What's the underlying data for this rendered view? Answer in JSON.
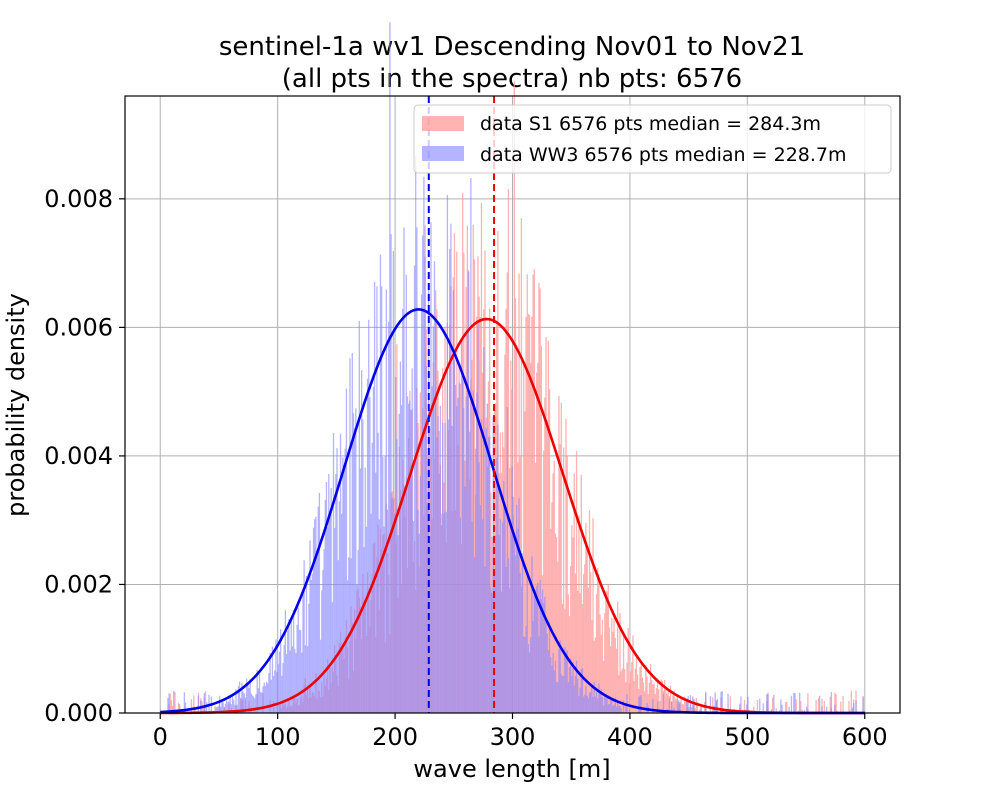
{
  "chart_data": {
    "type": "histogram",
    "title_line1": "sentinel-1a wv1 Descending Nov01 to Nov21",
    "title_line2": "(all pts in the spectra) nb pts: 6576",
    "xlabel": "wave length [m]",
    "ylabel": "probability density",
    "xlim": [
      -30,
      630
    ],
    "ylim": [
      0,
      0.0096
    ],
    "xticks": [
      0,
      100,
      200,
      300,
      400,
      500,
      600
    ],
    "xtick_labels": [
      "0",
      "100",
      "200",
      "300",
      "400",
      "500",
      "600"
    ],
    "yticks": [
      0.0,
      0.002,
      0.004,
      0.006,
      0.008
    ],
    "ytick_labels": [
      "0.000",
      "0.002",
      "0.004",
      "0.006",
      "0.008"
    ],
    "grid": true,
    "legend_position": "top-right",
    "series": [
      {
        "name": "data S1 6576 pts median = 284.3m",
        "color": "#ff9999",
        "opacity": 0.75,
        "median": 284.3,
        "n_points": 6576,
        "fit": {
          "type": "normal",
          "mean": 278,
          "std": 65,
          "peak_density": 0.00613,
          "color": "#ee0000"
        }
      },
      {
        "name": "data WW3 6576 pts median = 228.7m",
        "color": "#8888ff",
        "opacity": 0.62,
        "median": 228.7,
        "n_points": 6576,
        "fit": {
          "type": "normal",
          "mean": 220,
          "std": 63.5,
          "peak_density": 0.00628,
          "color": "#0000ee"
        }
      }
    ],
    "median_lines": [
      {
        "x": 228.7,
        "color": "#0000ee",
        "style": "dashed"
      },
      {
        "x": 284.3,
        "color": "#ee0000",
        "style": "dashed"
      }
    ],
    "histogram_bins": {
      "start": 0,
      "end": 600,
      "bin_width": 1
    }
  }
}
